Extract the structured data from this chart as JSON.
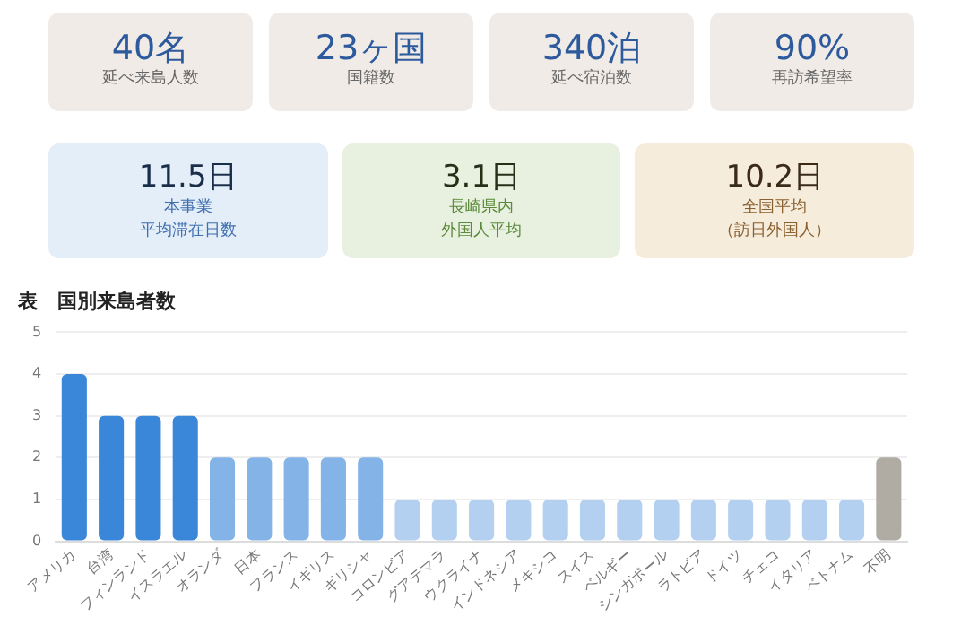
{
  "chart_data": [
    {
      "type": "other",
      "annotations": [
        "40名",
        "延べ来島人数",
        "23ヶ国",
        "国籍数",
        "340泊",
        "延べ宿泊数",
        "90%",
        "再訪希望率"
      ]
    },
    {
      "type": "other",
      "annotations": [
        "11.5日",
        "本事業",
        "平均滞在日数",
        "3.1日",
        "長崎県内",
        "外国人平均",
        "10.2日",
        "全国平均",
        "（訪日外国人）"
      ]
    },
    {
      "type": "bar",
      "title": "表　国別来島者数",
      "categories": [
        "アメリカ",
        "台湾",
        "フィンランド",
        "イスラエル",
        "オランダ",
        "日本",
        "フランス",
        "イギリス",
        "ギリシャ",
        "コロンビア",
        "グアテマラ",
        "ウクライナ",
        "インドネシア",
        "メキシコ",
        "スイス",
        "ベルギー",
        "シンガポール",
        "ラトビア",
        "ドイツ",
        "チェコ",
        "イタリア",
        "ベトナム",
        "不明"
      ],
      "values": [
        4,
        3,
        3,
        3,
        2,
        2,
        2,
        2,
        2,
        1,
        1,
        1,
        1,
        1,
        1,
        1,
        1,
        1,
        1,
        1,
        1,
        1,
        2
      ],
      "colors": [
        "#3a86d8",
        "#3a86d8",
        "#3a86d8",
        "#3a86d8",
        "#84b3e8",
        "#84b3e8",
        "#84b3e8",
        "#84b3e8",
        "#84b3e8",
        "#b3d0f0",
        "#b3d0f0",
        "#b3d0f0",
        "#b3d0f0",
        "#b3d0f0",
        "#b3d0f0",
        "#b3d0f0",
        "#b3d0f0",
        "#b3d0f0",
        "#b3d0f0",
        "#b3d0f0",
        "#b3d0f0",
        "#b3d0f0",
        "#b0aca3"
      ],
      "ylim": [
        0,
        5
      ],
      "yticks": [
        0,
        1,
        2,
        3,
        4,
        5
      ],
      "grid": "y",
      "legend": false
    }
  ]
}
